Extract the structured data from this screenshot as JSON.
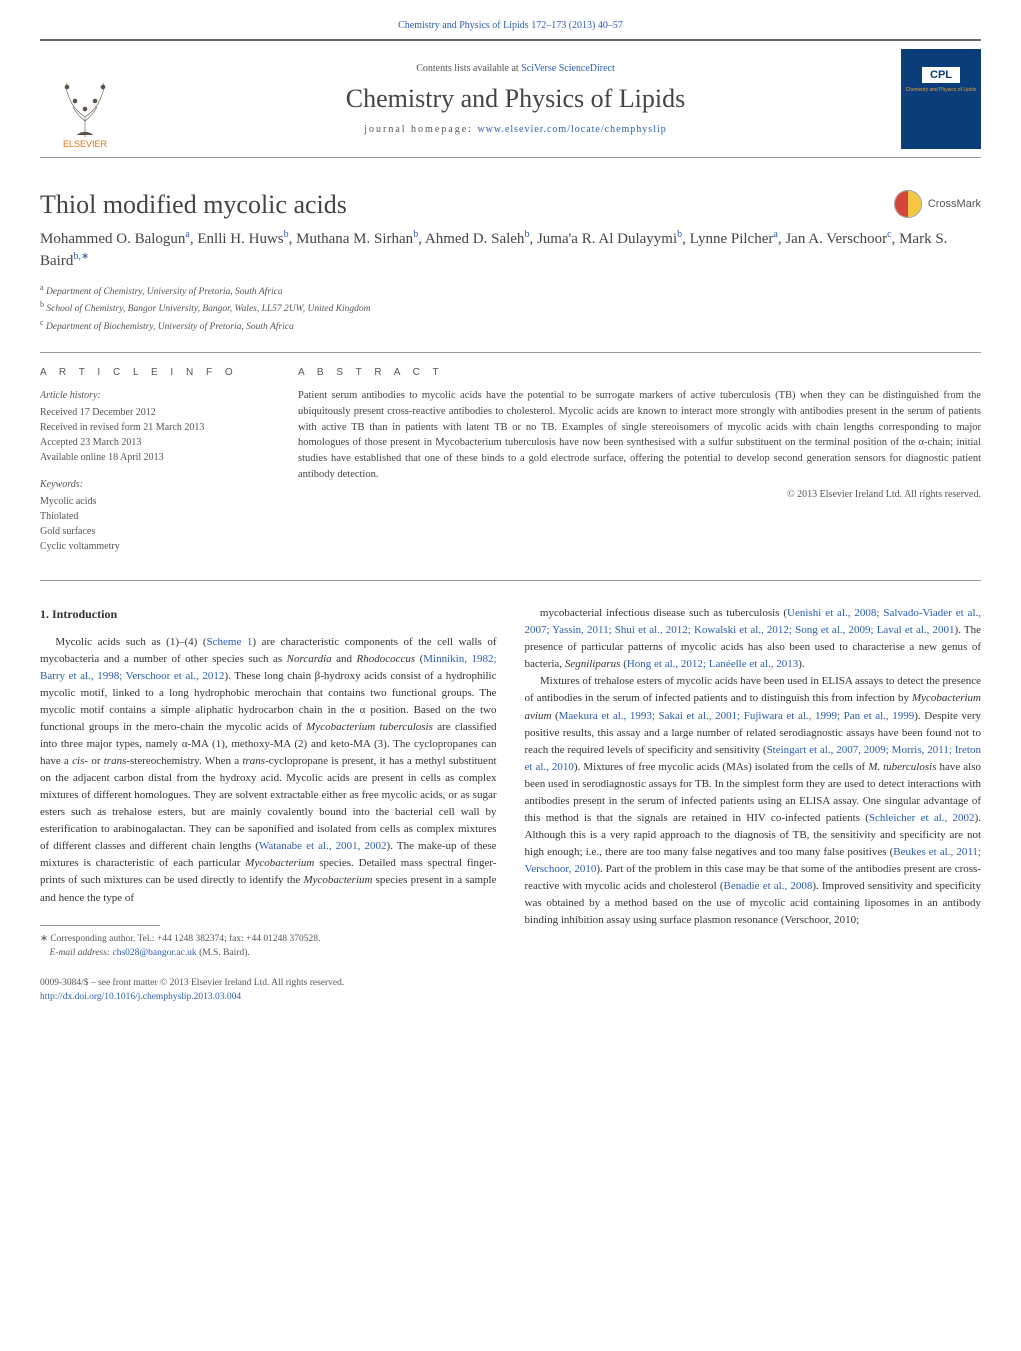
{
  "header": {
    "journal_ref_link": "Chemistry and Physics of Lipids 172–173 (2013) 40–57",
    "contents_prefix": "Contents lists available at ",
    "contents_link": "SciVerse ScienceDirect",
    "journal_title": "Chemistry and Physics of Lipids",
    "homepage_prefix": "journal homepage: ",
    "homepage_link": "www.elsevier.com/locate/chemphyslip",
    "publisher_name": "ELSEVIER",
    "cover_abbrev": "CPL",
    "cover_subtitle": "Chemistry and Physics of Lipids"
  },
  "crossmark_label": "CrossMark",
  "article": {
    "title": "Thiol modified mycolic acids",
    "authors_html": "Mohammed O. Balogun<sup>a</sup>, Enlli H. Huws<sup>b</sup>, Muthana M. Sirhan<sup>b</sup>, Ahmed D. Saleh<sup>b</sup>, Juma'a R. Al Dulayymi<sup>b</sup>, Lynne Pilcher<sup>a</sup>, Jan A. Verschoor<sup>c</sup>, Mark S. Baird<sup>b,∗</sup>",
    "affiliations": [
      "a Department of Chemistry, University of Pretoria, South Africa",
      "b School of Chemistry, Bangor University, Bangor, Wales, LL57 2UW, United Kingdom",
      "c Department of Biochemistry, University of Pretoria, South Africa"
    ]
  },
  "info": {
    "heading": "A R T I C L E   I N F O",
    "history_label": "Article history:",
    "history": [
      "Received 17 December 2012",
      "Received in revised form 21 March 2013",
      "Accepted 23 March 2013",
      "Available online 18 April 2013"
    ],
    "keywords_label": "Keywords:",
    "keywords": [
      "Mycolic acids",
      "Thiolated",
      "Gold surfaces",
      "Cyclic voltammetry"
    ]
  },
  "abstract": {
    "heading": "A B S T R A C T",
    "text": "Patient serum antibodies to mycolic acids have the potential to be surrogate markers of active tuberculosis (TB) when they can be distinguished from the ubiquitously present cross-reactive antibodies to cholesterol. Mycolic acids are known to interact more strongly with antibodies present in the serum of patients with active TB than in patients with latent TB or no TB. Examples of single stereoisomers of mycolic acids with chain lengths corresponding to major homologues of those present in Mycobacterium tuberculosis have now been synthesised with a sulfur substituent on the terminal position of the α-chain; initial studies have established that one of these binds to a gold electrode surface, offering the potential to develop second generation sensors for diagnostic patient antibody detection.",
    "copyright": "© 2013 Elsevier Ireland Ltd. All rights reserved."
  },
  "body": {
    "section_heading": "1.  Introduction",
    "col1_p1": "Mycolic acids such as (1)–(4) (Scheme 1) are characteristic components of the cell walls of mycobacteria and a number of other species such as Norcardia and Rhodococcus (Minnikin, 1982; Barry et al., 1998; Verschoor et al., 2012). These long chain β-hydroxy acids consist of a hydrophilic mycolic motif, linked to a long hydrophobic merochain that contains two functional groups. The mycolic motif contains a simple aliphatic hydrocarbon chain in the α position. Based on the two functional groups in the mero-chain the mycolic acids of Mycobacterium tuberculosis are classified into three major types, namely α-MA (1), methoxy-MA (2) and keto-MA (3). The cyclopropanes can have a cis- or trans-stereochemistry. When a trans-cyclopropane is present, it has a methyl substituent on the adjacent carbon distal from the hydroxy acid. Mycolic acids are present in cells as complex mixtures of different homologues. They are solvent extractable either as free mycolic acids, or as sugar esters such as trehalose esters, but are mainly covalently bound into the bacterial cell wall by esterification to arabinogalactan. They can be saponified and isolated from cells as complex mixtures of different classes and different chain lengths (Watanabe et al., 2001, 2002). The make-up of these mixtures is characteristic of each particular Mycobacterium species. Detailed mass spectral finger-prints of such mixtures can be used directly to identify the Mycobacterium species present in a sample and hence the type of",
    "col2_p1": "mycobacterial infectious disease such as tuberculosis (Uenishi et al., 2008; Salvado-Viader et al., 2007; Yassin, 2011; Shui et al., 2012; Kowalski et al., 2012; Song et al., 2009; Laval et al., 2001). The presence of particular patterns of mycolic acids has also been used to characterise a new genus of bacteria, Segniliparus (Hong et al., 2012; Lanéelle et al., 2013).",
    "col2_p2": "Mixtures of trehalose esters of mycolic acids have been used in ELISA assays to detect the presence of antibodies in the serum of infected patients and to distinguish this from infection by Mycobacterium avium (Maekura et al., 1993; Sakai et al., 2001; Fujiwara et al., 1999; Pan et al., 1999). Despite very positive results, this assay and a large number of related serodiagnostic assays have been found not to reach the required levels of specificity and sensitivity (Steingart et al., 2007, 2009; Morris, 2011; Ireton et al., 2010). Mixtures of free mycolic acids (MAs) isolated from the cells of M. tuberculosis have also been used in serodiagnostic assays for TB. In the simplest form they are used to detect interactions with antibodies present in the serum of infected patients using an ELISA assay. One singular advantage of this method is that the signals are retained in HIV co-infected patients (Schleicher et al., 2002). Although this is a very rapid approach to the diagnosis of TB, the sensitivity and specificity are not high enough; i.e., there are too many false negatives and too many false positives (Beukes et al., 2011; Verschoor, 2010). Part of the problem in this case may be that some of the antibodies present are cross-reactive with mycolic acids and cholesterol (Benadie et al., 2008). Improved sensitivity and specificity was obtained by a method based on the use of mycolic acid containing liposomes in an antibody binding inhibition assay using surface plasmon resonance (Verschoor, 2010;"
  },
  "footnote": {
    "corresponding": "∗ Corresponding author. Tel.: +44 1248 382374; fax: +44 01248 370528.",
    "email_label": "E-mail address: ",
    "email": "chs028@bangor.ac.uk",
    "email_suffix": " (M.S. Baird)."
  },
  "footer": {
    "line1": "0009-3084/$ – see front matter © 2013 Elsevier Ireland Ltd. All rights reserved.",
    "doi": "http://dx.doi.org/10.1016/j.chemphyslip.2013.03.004"
  },
  "colors": {
    "link": "#2a5db0",
    "text": "#333333",
    "muted": "#555555",
    "rule": "#999999",
    "publisher": "#e8720c",
    "cover_bg": "#0a3d7a",
    "cover_accent": "#e8a030"
  },
  "typography": {
    "body_pt": 11,
    "title_pt": 26,
    "authors_pt": 15,
    "small_pt": 10,
    "font_family": "Georgia, 'Times New Roman', serif"
  }
}
